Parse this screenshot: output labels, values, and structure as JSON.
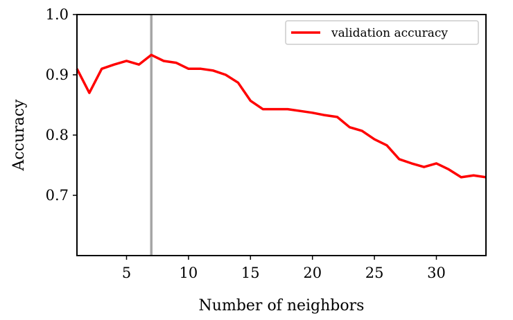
{
  "chart_data": {
    "type": "line",
    "title": "",
    "xlabel": "Number of neighbors",
    "ylabel": "Accuracy",
    "xlim": [
      1,
      34
    ],
    "ylim": [
      0.6,
      1.0
    ],
    "x_ticks": [
      5,
      10,
      15,
      20,
      25,
      30
    ],
    "y_ticks": [
      0.7,
      0.8,
      0.9,
      1.0
    ],
    "x_tick_labels": [
      "5",
      "10",
      "15",
      "20",
      "25",
      "30"
    ],
    "y_tick_labels": [
      "0.7",
      "0.8",
      "0.9",
      "1.0"
    ],
    "grid": false,
    "legend_position": "top-right",
    "vertical_line": {
      "x": 7,
      "color": "#a6a6a6"
    },
    "series": [
      {
        "name": "validation accuracy",
        "color": "#ff0000",
        "x": [
          1,
          2,
          3,
          4,
          5,
          6,
          7,
          8,
          9,
          10,
          11,
          12,
          13,
          14,
          15,
          16,
          17,
          18,
          19,
          20,
          21,
          22,
          23,
          24,
          25,
          26,
          27,
          28,
          29,
          30,
          31,
          32,
          33,
          34
        ],
        "values": [
          0.91,
          0.87,
          0.91,
          0.917,
          0.923,
          0.917,
          0.933,
          0.923,
          0.92,
          0.91,
          0.91,
          0.907,
          0.9,
          0.887,
          0.857,
          0.843,
          0.843,
          0.843,
          0.84,
          0.837,
          0.833,
          0.83,
          0.813,
          0.807,
          0.793,
          0.783,
          0.76,
          0.753,
          0.747,
          0.753,
          0.743,
          0.73,
          0.733,
          0.73
        ]
      }
    ]
  }
}
